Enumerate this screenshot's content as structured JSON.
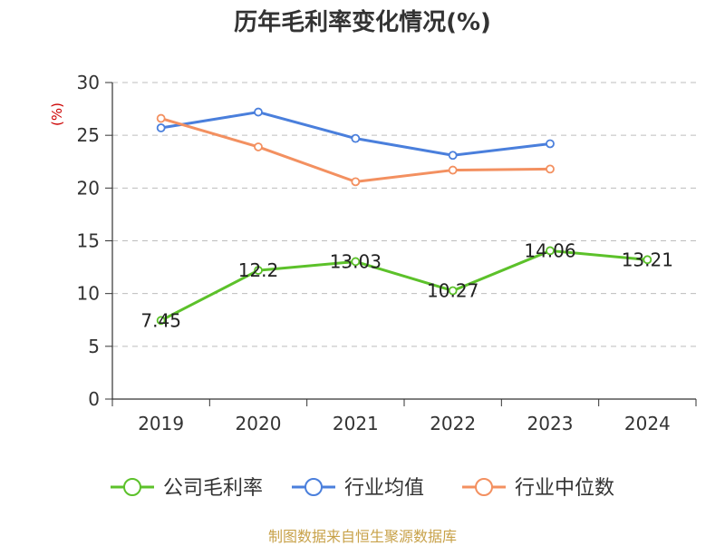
{
  "chart_data": {
    "type": "line",
    "title": "历年毛利率变化情况(%)",
    "ylabel": "(%)",
    "xlabel": "",
    "categories": [
      "2019",
      "2020",
      "2021",
      "2022",
      "2023",
      "2024"
    ],
    "ylim": [
      0,
      30
    ],
    "yticks": [
      0,
      5,
      10,
      15,
      20,
      25,
      30
    ],
    "grid": true,
    "legend_position": "bottom",
    "series": [
      {
        "name": "公司毛利率",
        "color": "#5cc12a",
        "show_labels": true,
        "values": [
          7.45,
          12.2,
          13.03,
          10.27,
          14.06,
          13.21
        ],
        "labels": [
          "7.45",
          "12.2",
          "13.03",
          "10.27",
          "14.06",
          "13.21"
        ]
      },
      {
        "name": "行业均值",
        "color": "#4a7fdc",
        "show_labels": false,
        "values": [
          25.7,
          27.2,
          24.7,
          23.1,
          24.2,
          null
        ]
      },
      {
        "name": "行业中位数",
        "color": "#f39060",
        "show_labels": false,
        "values": [
          26.6,
          23.9,
          20.6,
          21.7,
          21.8,
          null
        ]
      }
    ]
  },
  "source_note": "制图数据来自恒生聚源数据库"
}
